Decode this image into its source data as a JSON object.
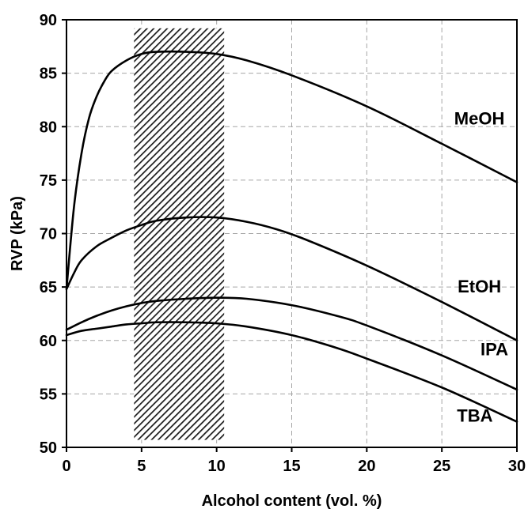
{
  "chart_data": {
    "type": "line",
    "xlabel": "Alcohol content (vol. %)",
    "ylabel": "RVP (kPa)",
    "xlim": [
      0,
      30
    ],
    "ylim": [
      50,
      90
    ],
    "xticks": [
      0,
      5,
      10,
      15,
      20,
      25,
      30
    ],
    "yticks": [
      50,
      55,
      60,
      65,
      70,
      75,
      80,
      85,
      90
    ],
    "grid": true,
    "grid_style": "dashed",
    "legend": "none",
    "highlight_band": {
      "x_range": [
        4.5,
        10.5
      ],
      "y_range": [
        50.7,
        89.2
      ],
      "pattern": "diagonal-hatch"
    },
    "series": [
      {
        "name": "MeOH",
        "color": "#000000",
        "x": [
          0,
          0.5,
          1,
          1.5,
          2,
          2.5,
          3,
          4,
          5,
          6,
          8,
          10,
          12,
          15,
          20,
          25,
          30
        ],
        "y": [
          64.8,
          72.5,
          77.5,
          80.8,
          82.8,
          84.2,
          85.2,
          86.2,
          86.8,
          87.0,
          87.0,
          86.8,
          86.2,
          84.8,
          81.9,
          78.4,
          74.8
        ]
      },
      {
        "name": "EtOH",
        "color": "#000000",
        "x": [
          0,
          0.5,
          1,
          2,
          3,
          4,
          5,
          6,
          8,
          10,
          12,
          14,
          16,
          20,
          25,
          30
        ],
        "y": [
          64.8,
          66.3,
          67.5,
          68.8,
          69.6,
          70.3,
          70.8,
          71.2,
          71.5,
          71.5,
          71.1,
          70.4,
          69.4,
          67.0,
          63.6,
          60.0
        ]
      },
      {
        "name": "IPA",
        "color": "#000000",
        "x": [
          0,
          1,
          2,
          3,
          4,
          5,
          6,
          8,
          10,
          12,
          15,
          18,
          20,
          25,
          30
        ],
        "y": [
          61.0,
          61.7,
          62.3,
          62.8,
          63.2,
          63.5,
          63.7,
          63.9,
          64.0,
          63.9,
          63.3,
          62.3,
          61.4,
          58.6,
          55.4
        ]
      },
      {
        "name": "TBA",
        "color": "#000000",
        "x": [
          0,
          1,
          2,
          3,
          4,
          5,
          6,
          8,
          10,
          12,
          15,
          18,
          20,
          25,
          30
        ],
        "y": [
          60.5,
          60.9,
          61.1,
          61.3,
          61.5,
          61.6,
          61.7,
          61.7,
          61.6,
          61.3,
          60.5,
          59.3,
          58.3,
          55.6,
          52.4
        ]
      }
    ],
    "annotations": [
      {
        "text": "MeOH",
        "x": 27.5,
        "y": 80.2
      },
      {
        "text": "EtOH",
        "x": 27.5,
        "y": 64.5
      },
      {
        "text": "IPA",
        "x": 28.5,
        "y": 58.6
      },
      {
        "text": "TBA",
        "x": 27.2,
        "y": 52.4
      }
    ]
  }
}
